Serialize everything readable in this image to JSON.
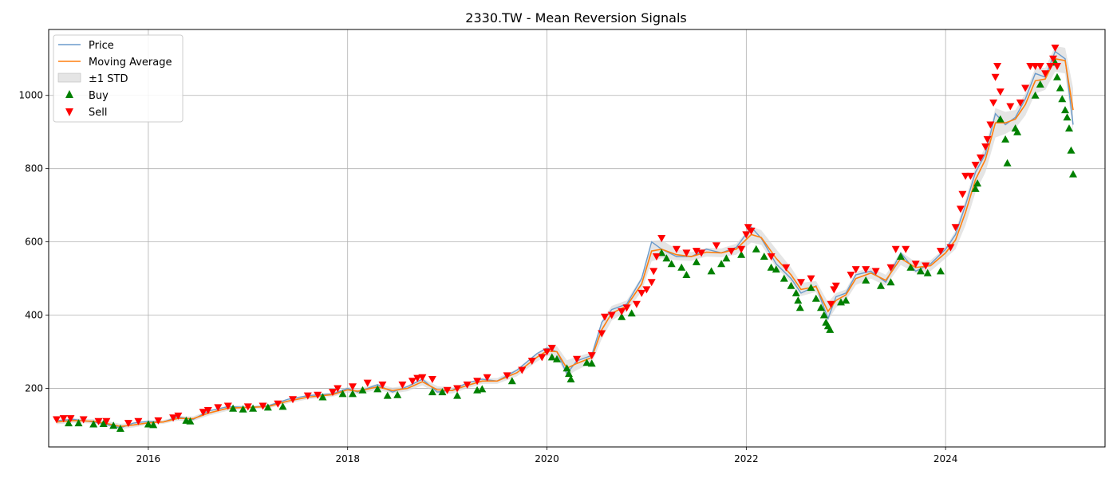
{
  "chart_data": {
    "type": "line",
    "title": "2330.TW - Mean Reversion Signals",
    "xlabel": "",
    "ylabel": "",
    "xlim": [
      2015.0,
      2025.6
    ],
    "ylim": [
      40,
      1180
    ],
    "x_ticks": [
      2016,
      2018,
      2020,
      2022,
      2024
    ],
    "x_tick_labels": [
      "2016",
      "2018",
      "2020",
      "2022",
      "2024"
    ],
    "y_ticks": [
      200,
      400,
      600,
      800,
      1000
    ],
    "y_tick_labels": [
      "200",
      "400",
      "600",
      "800",
      "1000"
    ],
    "grid": true,
    "legend_position": "top-left",
    "legend": [
      "Price",
      "Moving Average",
      "±1 STD",
      "Buy",
      "Sell"
    ],
    "colors": {
      "price": "#6b9bcb",
      "moving_average": "#ff7f0e",
      "std_band": "#d3d3d3",
      "buy": "#008000",
      "sell": "#ff0000"
    },
    "series": [
      {
        "name": "Price",
        "x": [
          2015.08,
          2015.25,
          2015.45,
          2015.6,
          2015.72,
          2015.85,
          2016.0,
          2016.15,
          2016.3,
          2016.45,
          2016.6,
          2016.8,
          2017.0,
          2017.2,
          2017.4,
          2017.6,
          2017.85,
          2018.0,
          2018.1,
          2018.3,
          2018.45,
          2018.6,
          2018.75,
          2018.9,
          2019.05,
          2019.2,
          2019.35,
          2019.5,
          2019.7,
          2019.9,
          2020.0,
          2020.1,
          2020.2,
          2020.3,
          2020.45,
          2020.55,
          2020.65,
          2020.8,
          2020.95,
          2021.05,
          2021.15,
          2021.3,
          2021.45,
          2021.6,
          2021.75,
          2021.9,
          2022.05,
          2022.15,
          2022.3,
          2022.45,
          2022.55,
          2022.7,
          2022.82,
          2022.9,
          2023.0,
          2023.1,
          2023.25,
          2023.4,
          2023.55,
          2023.7,
          2023.85,
          2024.0,
          2024.1,
          2024.2,
          2024.3,
          2024.4,
          2024.5,
          2024.6,
          2024.7,
          2024.8,
          2024.9,
          2025.0,
          2025.1,
          2025.2,
          2025.28
        ],
        "values": [
          112,
          115,
          108,
          100,
          92,
          105,
          110,
          108,
          122,
          115,
          138,
          150,
          148,
          152,
          170,
          180,
          185,
          200,
          190,
          210,
          190,
          205,
          225,
          190,
          195,
          215,
          225,
          220,
          250,
          295,
          310,
          300,
          240,
          275,
          290,
          380,
          415,
          430,
          500,
          600,
          580,
          560,
          560,
          580,
          570,
          585,
          640,
          610,
          540,
          500,
          460,
          480,
          390,
          450,
          460,
          510,
          520,
          490,
          570,
          520,
          540,
          580,
          620,
          700,
          790,
          840,
          950,
          920,
          940,
          990,
          1060,
          1050,
          1120,
          1100,
          920
        ]
      },
      {
        "name": "Moving Average",
        "x": [
          2015.08,
          2015.25,
          2015.45,
          2015.6,
          2015.72,
          2015.85,
          2016.0,
          2016.15,
          2016.3,
          2016.45,
          2016.6,
          2016.8,
          2017.0,
          2017.2,
          2017.4,
          2017.6,
          2017.85,
          2018.0,
          2018.1,
          2018.3,
          2018.45,
          2018.6,
          2018.75,
          2018.9,
          2019.05,
          2019.2,
          2019.35,
          2019.5,
          2019.7,
          2019.9,
          2020.0,
          2020.1,
          2020.2,
          2020.3,
          2020.45,
          2020.55,
          2020.65,
          2020.8,
          2020.95,
          2021.05,
          2021.15,
          2021.3,
          2021.45,
          2021.6,
          2021.75,
          2021.9,
          2022.05,
          2022.15,
          2022.3,
          2022.45,
          2022.55,
          2022.7,
          2022.82,
          2022.9,
          2023.0,
          2023.1,
          2023.25,
          2023.4,
          2023.55,
          2023.7,
          2023.85,
          2024.0,
          2024.1,
          2024.2,
          2024.3,
          2024.4,
          2024.5,
          2024.6,
          2024.7,
          2024.8,
          2024.9,
          2025.0,
          2025.1,
          2025.2,
          2025.28
        ],
        "values": [
          108,
          112,
          110,
          103,
          96,
          100,
          106,
          108,
          118,
          117,
          132,
          146,
          148,
          150,
          165,
          176,
          183,
          196,
          192,
          204,
          194,
          200,
          218,
          196,
          194,
          208,
          220,
          220,
          243,
          285,
          302,
          300,
          255,
          268,
          284,
          360,
          405,
          425,
          485,
          575,
          580,
          565,
          560,
          572,
          570,
          580,
          620,
          612,
          555,
          510,
          470,
          478,
          410,
          440,
          455,
          500,
          515,
          495,
          555,
          530,
          535,
          570,
          605,
          680,
          770,
          825,
          925,
          925,
          935,
          975,
          1040,
          1045,
          1100,
          1095,
          960
        ]
      },
      {
        "name": "±1 STD",
        "std": [
          6,
          6,
          6,
          7,
          7,
          7,
          5,
          5,
          6,
          6,
          7,
          7,
          5,
          5,
          6,
          6,
          6,
          8,
          8,
          8,
          8,
          8,
          10,
          10,
          8,
          8,
          8,
          8,
          10,
          12,
          12,
          15,
          22,
          18,
          15,
          25,
          20,
          15,
          20,
          28,
          25,
          15,
          12,
          12,
          12,
          15,
          22,
          20,
          25,
          20,
          18,
          15,
          25,
          20,
          15,
          18,
          15,
          15,
          18,
          15,
          15,
          15,
          25,
          35,
          35,
          35,
          40,
          30,
          25,
          30,
          35,
          30,
          35,
          35,
          60
        ]
      }
    ],
    "buy_points": {
      "x": [
        2015.2,
        2015.3,
        2015.45,
        2015.55,
        2015.65,
        2015.72,
        2016.0,
        2016.05,
        2016.38,
        2016.42,
        2016.85,
        2016.95,
        2017.05,
        2017.2,
        2017.35,
        2017.75,
        2017.95,
        2018.05,
        2018.15,
        2018.3,
        2018.4,
        2018.5,
        2018.85,
        2018.95,
        2019.1,
        2019.3,
        2019.35,
        2019.65,
        2020.05,
        2020.1,
        2020.2,
        2020.22,
        2020.24,
        2020.4,
        2020.45,
        2020.75,
        2020.85,
        2021.15,
        2021.2,
        2021.25,
        2021.35,
        2021.4,
        2021.5,
        2021.65,
        2021.75,
        2021.8,
        2021.95,
        2022.1,
        2022.18,
        2022.25,
        2022.3,
        2022.38,
        2022.45,
        2022.5,
        2022.52,
        2022.54,
        2022.65,
        2022.7,
        2022.75,
        2022.78,
        2022.8,
        2022.82,
        2022.84,
        2022.95,
        2023.0,
        2023.2,
        2023.35,
        2023.45,
        2023.55,
        2023.65,
        2023.75,
        2023.82,
        2023.95,
        2024.3,
        2024.32,
        2024.55,
        2024.6,
        2024.62,
        2024.7,
        2024.72,
        2024.9,
        2024.95,
        2025.1,
        2025.12,
        2025.15,
        2025.17,
        2025.2,
        2025.22,
        2025.24,
        2025.26,
        2025.28
      ],
      "values": [
        105,
        105,
        102,
        103,
        98,
        90,
        102,
        100,
        112,
        110,
        145,
        143,
        145,
        148,
        150,
        176,
        185,
        185,
        195,
        198,
        180,
        182,
        190,
        190,
        180,
        195,
        198,
        220,
        285,
        280,
        255,
        240,
        225,
        270,
        268,
        395,
        405,
        570,
        555,
        540,
        530,
        510,
        545,
        520,
        540,
        555,
        565,
        580,
        560,
        530,
        525,
        500,
        480,
        460,
        440,
        420,
        475,
        445,
        420,
        400,
        380,
        370,
        360,
        435,
        440,
        495,
        480,
        490,
        560,
        530,
        520,
        515,
        520,
        745,
        760,
        935,
        880,
        815,
        910,
        900,
        1000,
        1030,
        1090,
        1050,
        1020,
        990,
        960,
        940,
        910,
        850,
        785
      ]
    },
    "sell_points": {
      "x": [
        2015.08,
        2015.15,
        2015.22,
        2015.35,
        2015.5,
        2015.58,
        2015.8,
        2015.9,
        2016.1,
        2016.25,
        2016.3,
        2016.55,
        2016.6,
        2016.7,
        2016.8,
        2017.0,
        2017.15,
        2017.3,
        2017.45,
        2017.6,
        2017.7,
        2017.85,
        2017.9,
        2018.05,
        2018.2,
        2018.35,
        2018.55,
        2018.65,
        2018.7,
        2018.75,
        2018.85,
        2019.0,
        2019.1,
        2019.2,
        2019.3,
        2019.4,
        2019.6,
        2019.75,
        2019.85,
        2019.95,
        2020.0,
        2020.05,
        2020.3,
        2020.45,
        2020.55,
        2020.58,
        2020.65,
        2020.75,
        2020.8,
        2020.9,
        2020.95,
        2021.0,
        2021.05,
        2021.07,
        2021.1,
        2021.15,
        2021.3,
        2021.4,
        2021.5,
        2021.55,
        2021.7,
        2021.85,
        2021.95,
        2022.0,
        2022.02,
        2022.05,
        2022.25,
        2022.4,
        2022.55,
        2022.65,
        2022.85,
        2022.88,
        2022.9,
        2023.05,
        2023.1,
        2023.2,
        2023.3,
        2023.45,
        2023.5,
        2023.6,
        2023.7,
        2023.8,
        2023.95,
        2024.05,
        2024.1,
        2024.15,
        2024.17,
        2024.2,
        2024.25,
        2024.3,
        2024.35,
        2024.4,
        2024.42,
        2024.45,
        2024.48,
        2024.5,
        2024.52,
        2024.55,
        2024.65,
        2024.75,
        2024.8,
        2024.85,
        2024.9,
        2024.95,
        2025.0,
        2025.05,
        2025.08,
        2025.1,
        2025.12
      ],
      "values": [
        115,
        118,
        118,
        115,
        110,
        110,
        105,
        110,
        112,
        120,
        125,
        135,
        140,
        148,
        152,
        150,
        152,
        158,
        170,
        180,
        182,
        190,
        200,
        205,
        215,
        210,
        210,
        220,
        228,
        230,
        225,
        195,
        200,
        210,
        220,
        230,
        235,
        250,
        275,
        285,
        300,
        310,
        280,
        290,
        350,
        395,
        400,
        410,
        420,
        430,
        460,
        470,
        490,
        520,
        560,
        610,
        580,
        570,
        575,
        570,
        590,
        575,
        580,
        620,
        640,
        630,
        560,
        530,
        490,
        500,
        430,
        470,
        480,
        510,
        525,
        525,
        520,
        530,
        580,
        580,
        540,
        535,
        575,
        585,
        640,
        690,
        730,
        780,
        780,
        810,
        830,
        860,
        880,
        920,
        980,
        1050,
        1080,
        1010,
        970,
        980,
        1020,
        1080,
        1080,
        1080,
        1060,
        1080,
        1100,
        1130,
        1080
      ]
    }
  }
}
